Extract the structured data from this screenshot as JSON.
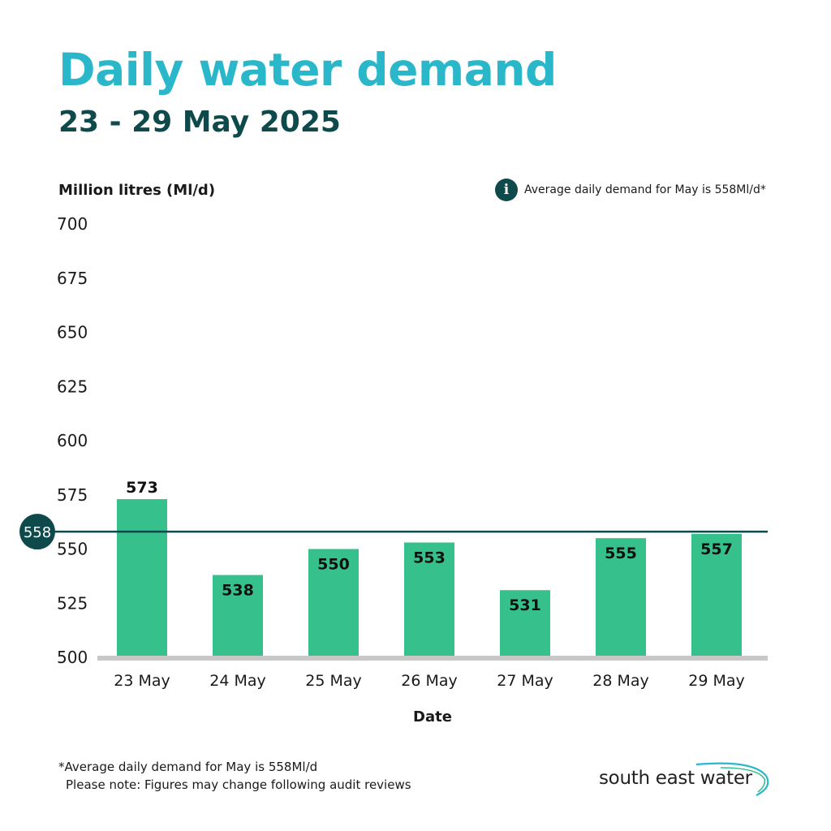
{
  "header": {
    "title": "Daily water demand",
    "subtitle": "23 - 29 May 2025"
  },
  "info_note": {
    "icon": "info-icon",
    "icon_glyph": "i",
    "text": "Average daily demand for May is 558Ml/d*"
  },
  "chart_data": {
    "type": "bar",
    "title": "Daily water demand",
    "subtitle": "23 - 29 May 2025",
    "ylabel": "Million litres (Ml/d)",
    "xlabel": "Date",
    "categories": [
      "23 May",
      "24 May",
      "25 May",
      "26 May",
      "27 May",
      "28 May",
      "29 May"
    ],
    "values": [
      573,
      538,
      550,
      553,
      531,
      555,
      557
    ],
    "value_labels": [
      "573",
      "538",
      "550",
      "553",
      "531",
      "555",
      "557"
    ],
    "ylim": [
      500,
      700
    ],
    "yticks": [
      500,
      525,
      550,
      575,
      600,
      625,
      650,
      675,
      700
    ],
    "reference_line": {
      "value": 558,
      "label": "558"
    },
    "grid": false,
    "colors": {
      "bar": "#36c08c",
      "reference": "#0e4a4c",
      "axis": "#c8c8c8",
      "text": "#1a1a1a"
    }
  },
  "footer": {
    "note_line1": "*Average daily demand for May is 558Ml/d",
    "note_line2": "Please note: Figures may change following audit reviews",
    "brand": "south east water"
  }
}
